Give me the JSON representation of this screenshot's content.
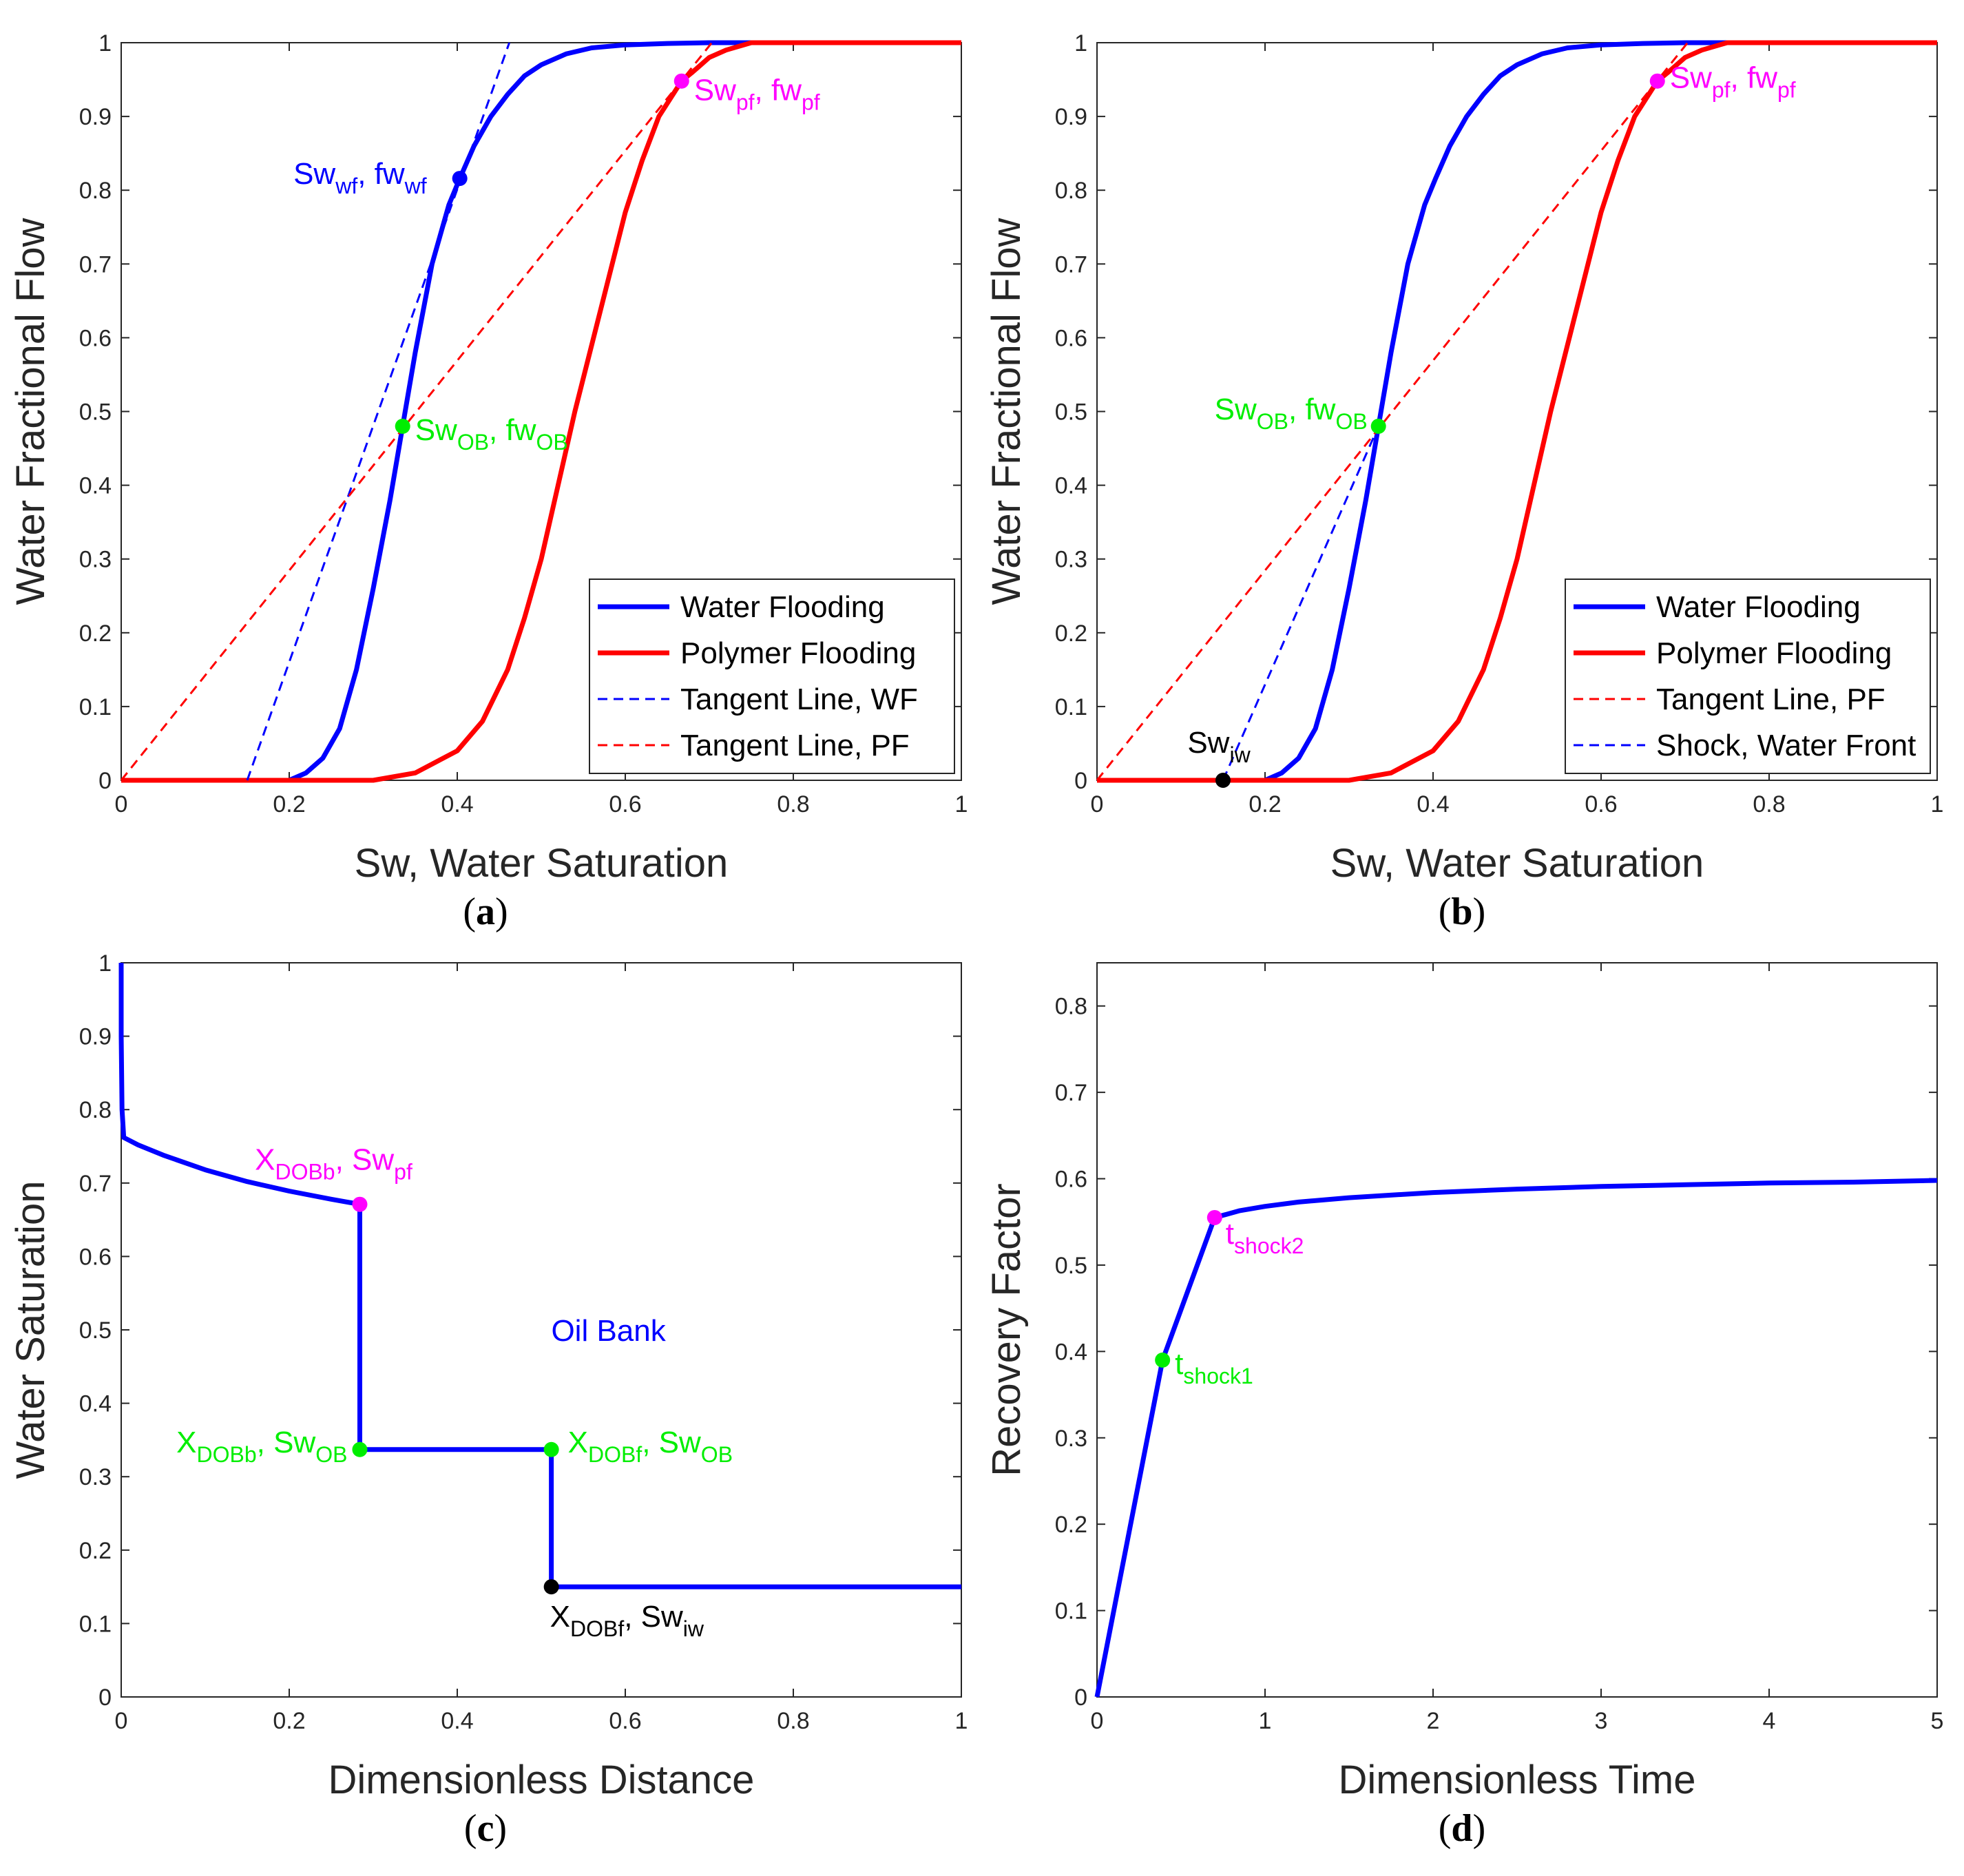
{
  "colors": {
    "water": "#0000ff",
    "polymer": "#ff0000",
    "green": "#00ee00",
    "magenta": "#ff00ff",
    "black": "#000000",
    "axis": "#262626"
  },
  "chart_data": [
    {
      "id": "a",
      "label_letter": "a",
      "type": "line",
      "xlabel": "Sw, Water Saturation",
      "ylabel": "Water Fractional Flow",
      "xlim": [
        0,
        1
      ],
      "ylim": [
        0,
        1
      ],
      "xticks": [
        0,
        0.2,
        0.4,
        0.6,
        0.8,
        1
      ],
      "xtick_labels": [
        "0",
        "0.2",
        "0.4",
        "0.6",
        "0.8",
        "1"
      ],
      "yticks": [
        0,
        0.1,
        0.2,
        0.3,
        0.4,
        0.5,
        0.6,
        0.7,
        0.8,
        0.9,
        1
      ],
      "ytick_labels": [
        "0",
        "0.1",
        "0.2",
        "0.3",
        "0.4",
        "0.5",
        "0.6",
        "0.7",
        "0.8",
        "0.9",
        "1"
      ],
      "series": [
        {
          "name": "Water Flooding",
          "style": "solid",
          "color": "water",
          "x": [
            0,
            0.15,
            0.2,
            0.22,
            0.24,
            0.26,
            0.28,
            0.3,
            0.32,
            0.335,
            0.35,
            0.37,
            0.39,
            0.403,
            0.42,
            0.44,
            0.46,
            0.48,
            0.5,
            0.53,
            0.56,
            0.6,
            0.65,
            0.7,
            0.76,
            1
          ],
          "y": [
            0,
            0,
            0,
            0.01,
            0.03,
            0.07,
            0.15,
            0.26,
            0.38,
            0.48,
            0.58,
            0.7,
            0.78,
            0.816,
            0.86,
            0.9,
            0.93,
            0.955,
            0.97,
            0.985,
            0.993,
            0.997,
            0.999,
            1,
            1,
            1
          ]
        },
        {
          "name": "Polymer Flooding",
          "style": "solid",
          "color": "polymer",
          "x": [
            0,
            0.3,
            0.35,
            0.4,
            0.43,
            0.46,
            0.48,
            0.5,
            0.52,
            0.54,
            0.56,
            0.58,
            0.6,
            0.62,
            0.64,
            0.667,
            0.68,
            0.7,
            0.72,
            0.75,
            0.8,
            1
          ],
          "y": [
            0,
            0,
            0.01,
            0.04,
            0.08,
            0.15,
            0.22,
            0.3,
            0.4,
            0.5,
            0.59,
            0.68,
            0.77,
            0.84,
            0.9,
            0.948,
            0.96,
            0.98,
            0.99,
            1,
            1,
            1
          ]
        },
        {
          "name": "Tangent Line, WF",
          "style": "dashed",
          "color": "water",
          "x": [
            0.15,
            0.462
          ],
          "y": [
            0,
            1
          ]
        },
        {
          "name": "Tangent Line, PF",
          "style": "dashed",
          "color": "polymer",
          "x": [
            0,
            0.703
          ],
          "y": [
            0,
            1
          ]
        }
      ],
      "points": [
        {
          "x": 0.403,
          "y": 0.816,
          "color": "water",
          "label": "Sw",
          "sub": "wf",
          "label2": "fw",
          "sub2": "wf",
          "pos": "left"
        },
        {
          "x": 0.335,
          "y": 0.48,
          "color": "green",
          "label": "Sw",
          "sub": "OB",
          "label2": "fw",
          "sub2": "OB",
          "pos": "right"
        },
        {
          "x": 0.667,
          "y": 0.948,
          "color": "magenta",
          "label": "Sw",
          "sub": "pf",
          "label2": "fw",
          "sub2": "pf",
          "pos": "right"
        }
      ],
      "legend": {
        "placement": "bottom-right",
        "entries": [
          "Water Flooding",
          "Polymer Flooding",
          "Tangent Line, WF",
          "Tangent Line, PF"
        ]
      }
    },
    {
      "id": "b",
      "label_letter": "b",
      "type": "line",
      "xlabel": "Sw, Water Saturation",
      "ylabel": "Water Fractional Flow",
      "xlim": [
        0,
        1
      ],
      "ylim": [
        0,
        1
      ],
      "xticks": [
        0,
        0.2,
        0.4,
        0.6,
        0.8,
        1
      ],
      "xtick_labels": [
        "0",
        "0.2",
        "0.4",
        "0.6",
        "0.8",
        "1"
      ],
      "yticks": [
        0,
        0.1,
        0.2,
        0.3,
        0.4,
        0.5,
        0.6,
        0.7,
        0.8,
        0.9,
        1
      ],
      "ytick_labels": [
        "0",
        "0.1",
        "0.2",
        "0.3",
        "0.4",
        "0.5",
        "0.6",
        "0.7",
        "0.8",
        "0.9",
        "1"
      ],
      "series": [
        {
          "name": "Water Flooding",
          "style": "solid",
          "color": "water",
          "x": [
            0,
            0.15,
            0.2,
            0.22,
            0.24,
            0.26,
            0.28,
            0.3,
            0.32,
            0.335,
            0.35,
            0.37,
            0.39,
            0.403,
            0.42,
            0.44,
            0.46,
            0.48,
            0.5,
            0.53,
            0.56,
            0.6,
            0.65,
            0.7,
            0.76,
            1
          ],
          "y": [
            0,
            0,
            0,
            0.01,
            0.03,
            0.07,
            0.15,
            0.26,
            0.38,
            0.48,
            0.58,
            0.7,
            0.78,
            0.816,
            0.86,
            0.9,
            0.93,
            0.955,
            0.97,
            0.985,
            0.993,
            0.997,
            0.999,
            1,
            1,
            1
          ]
        },
        {
          "name": "Polymer Flooding",
          "style": "solid",
          "color": "polymer",
          "x": [
            0,
            0.3,
            0.35,
            0.4,
            0.43,
            0.46,
            0.48,
            0.5,
            0.52,
            0.54,
            0.56,
            0.58,
            0.6,
            0.62,
            0.64,
            0.667,
            0.68,
            0.7,
            0.72,
            0.75,
            0.8,
            1
          ],
          "y": [
            0,
            0,
            0.01,
            0.04,
            0.08,
            0.15,
            0.22,
            0.3,
            0.4,
            0.5,
            0.59,
            0.68,
            0.77,
            0.84,
            0.9,
            0.948,
            0.96,
            0.98,
            0.99,
            1,
            1,
            1
          ]
        },
        {
          "name": "Tangent Line, PF",
          "style": "dashed",
          "color": "polymer",
          "x": [
            0,
            0.703
          ],
          "y": [
            0,
            1
          ]
        },
        {
          "name": "Shock, Water Front",
          "style": "dashed",
          "color": "water",
          "x": [
            0.15,
            0.335
          ],
          "y": [
            0,
            0.48
          ]
        }
      ],
      "points": [
        {
          "x": 0.15,
          "y": 0,
          "color": "black",
          "label": "Sw",
          "sub": "iw",
          "pos": "above"
        },
        {
          "x": 0.335,
          "y": 0.48,
          "color": "green",
          "label": "Sw",
          "sub": "OB",
          "label2": "fw",
          "sub2": "OB",
          "pos": "left"
        },
        {
          "x": 0.667,
          "y": 0.948,
          "color": "magenta",
          "label": "Sw",
          "sub": "pf",
          "label2": "fw",
          "sub2": "pf",
          "pos": "right"
        }
      ],
      "legend": {
        "placement": "bottom-right",
        "entries": [
          "Water Flooding",
          "Polymer Flooding",
          "Tangent Line, PF",
          "Shock, Water Front"
        ]
      }
    },
    {
      "id": "c",
      "label_letter": "c",
      "type": "line",
      "xlabel": "Dimensionless Distance",
      "ylabel": "Water Saturation",
      "xlim": [
        0,
        1
      ],
      "ylim": [
        0,
        1
      ],
      "xticks": [
        0,
        0.2,
        0.4,
        0.6,
        0.8,
        1
      ],
      "xtick_labels": [
        "0",
        "0.2",
        "0.4",
        "0.6",
        "0.8",
        "1"
      ],
      "yticks": [
        0,
        0.1,
        0.2,
        0.3,
        0.4,
        0.5,
        0.6,
        0.7,
        0.8,
        0.9,
        1
      ],
      "ytick_labels": [
        "0",
        "0.1",
        "0.2",
        "0.3",
        "0.4",
        "0.5",
        "0.6",
        "0.7",
        "0.8",
        "0.9",
        "1"
      ],
      "series": [
        {
          "name": "Water saturation profile",
          "style": "solid",
          "color": "water",
          "x": [
            0,
            0,
            0.001,
            0.003,
            0.02,
            0.05,
            0.1,
            0.15,
            0.2,
            0.25,
            0.284,
            0.284,
            0.512,
            0.512,
            1
          ],
          "y": [
            1,
            0.9,
            0.8,
            0.762,
            0.752,
            0.738,
            0.718,
            0.702,
            0.689,
            0.678,
            0.671,
            0.337,
            0.337,
            0.15,
            0.15
          ]
        }
      ],
      "points": [
        {
          "x": 0.284,
          "y": 0.671,
          "color": "magenta",
          "label": "X",
          "sub": "DOBb",
          "label2": "Sw",
          "sub2": "pf",
          "pos": "above"
        },
        {
          "x": 0.284,
          "y": 0.337,
          "color": "green",
          "label": "X",
          "sub": "DOBb",
          "label2": "Sw",
          "sub2": "OB",
          "pos": "left"
        },
        {
          "x": 0.512,
          "y": 0.337,
          "color": "green",
          "label": "X",
          "sub": "DOBf",
          "label2": "Sw",
          "sub2": "OB",
          "pos": "right"
        },
        {
          "x": 0.512,
          "y": 0.15,
          "color": "black",
          "label": "X",
          "sub": "DOBf",
          "label2": "Sw",
          "sub2": "iw",
          "pos": "below"
        }
      ],
      "annotations": [
        {
          "text": "Oil Bank",
          "x": 0.58,
          "y": 0.5,
          "color": "water"
        }
      ]
    },
    {
      "id": "d",
      "label_letter": "d",
      "type": "line",
      "xlabel": "Dimensionless Time",
      "ylabel": "Recovery Factor",
      "xlim": [
        0,
        5
      ],
      "ylim": [
        0,
        0.85
      ],
      "xticks": [
        0,
        1,
        2,
        3,
        4,
        5
      ],
      "xtick_labels": [
        "0",
        "1",
        "2",
        "3",
        "4",
        "5"
      ],
      "yticks": [
        0,
        0.1,
        0.2,
        0.3,
        0.4,
        0.5,
        0.6,
        0.7,
        0.8
      ],
      "ytick_labels": [
        "0",
        "0.1",
        "0.2",
        "0.3",
        "0.4",
        "0.5",
        "0.6",
        "0.7",
        "0.8"
      ],
      "series": [
        {
          "name": "Recovery factor",
          "style": "solid",
          "color": "water",
          "x": [
            0,
            0.39,
            0.7,
            0.85,
            1.0,
            1.2,
            1.5,
            2.0,
            2.5,
            3.0,
            3.5,
            4.0,
            4.5,
            5.0
          ],
          "y": [
            0,
            0.39,
            0.555,
            0.563,
            0.568,
            0.573,
            0.578,
            0.584,
            0.588,
            0.591,
            0.593,
            0.595,
            0.596,
            0.598
          ]
        }
      ],
      "points": [
        {
          "x": 0.39,
          "y": 0.39,
          "color": "green",
          "label": "t",
          "sub": "shock1",
          "pos": "right"
        },
        {
          "x": 0.7,
          "y": 0.555,
          "color": "magenta",
          "label": "t",
          "sub": "shock2",
          "pos": "right-below"
        }
      ]
    }
  ]
}
